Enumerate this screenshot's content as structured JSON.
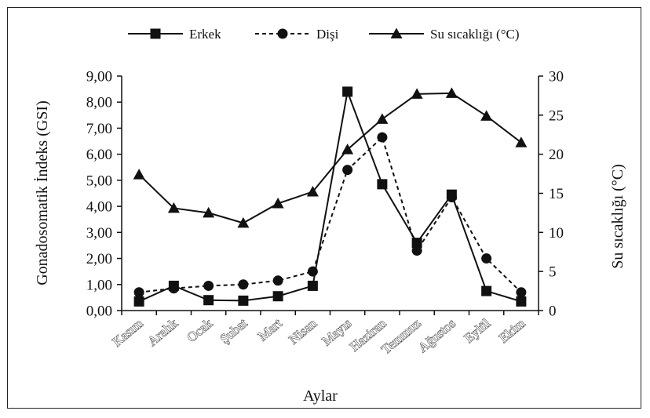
{
  "chart_data": {
    "type": "line",
    "xlabel": "Aylar",
    "ylabel_left": "Gonadosomatik İndeks (GSI)",
    "ylabel_right": "Su sıcaklığı (°C)",
    "ylim_left": [
      0,
      9
    ],
    "ylim_right": [
      0,
      30
    ],
    "yticks_left": [
      "0,00",
      "1,00",
      "2,00",
      "3,00",
      "4,00",
      "5,00",
      "6,00",
      "7,00",
      "8,00",
      "9,00"
    ],
    "yticks_right": [
      "0",
      "5",
      "10",
      "15",
      "20",
      "25",
      "30"
    ],
    "grid": false,
    "legend_position": "top",
    "categories": [
      "Kasım",
      "Aralık",
      "Ocak",
      "Şubat",
      "Mart",
      "Nisan",
      "Mayıs",
      "Haziran",
      "Temmuz",
      "Ağustos",
      "Eylül",
      "Ekim"
    ],
    "series": [
      {
        "name": "Erkek",
        "axis": "left",
        "marker": "square",
        "line": "solid",
        "values": [
          0.35,
          0.95,
          0.4,
          0.38,
          0.55,
          0.95,
          8.4,
          4.85,
          2.6,
          4.45,
          0.75,
          0.35
        ]
      },
      {
        "name": "Dişi",
        "axis": "left",
        "marker": "circle",
        "line": "dashed",
        "values": [
          0.7,
          0.85,
          0.95,
          1.0,
          1.15,
          1.5,
          5.4,
          6.65,
          2.3,
          4.35,
          2.0,
          0.7
        ]
      },
      {
        "name": "Su sıcaklığı (°C)",
        "axis": "right",
        "marker": "triangle",
        "line": "solid",
        "values": [
          17.4,
          13.1,
          12.5,
          11.2,
          13.7,
          15.2,
          20.6,
          24.5,
          27.7,
          27.8,
          24.9,
          21.5
        ]
      }
    ]
  }
}
